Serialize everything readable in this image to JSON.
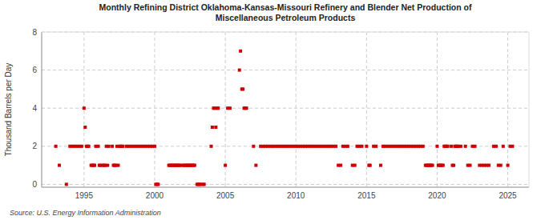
{
  "chart_data": {
    "type": "scatter",
    "title": "Monthly Refining District Oklahoma-Kansas-Missouri Refinery and Blender Net Production of\nMiscellaneous Petroleum Products",
    "ylabel": "Thousand Barrels per Day",
    "source": "Source: U.S. Energy Information Administration",
    "color": "#cc0000",
    "marker": "square",
    "grid": true,
    "xlim": [
      1992.0,
      2026.5
    ],
    "ylim": [
      -0.15,
      8.0
    ],
    "yticks": [
      0,
      2,
      4,
      6,
      8
    ],
    "xticks": [
      1995,
      2000,
      2005,
      2010,
      2015,
      2020,
      2025
    ],
    "x": [
      1993.0,
      1993.25,
      1993.75,
      1994.0,
      1994.17,
      1994.33,
      1994.5,
      1994.67,
      1994.83,
      1995.0,
      1995.08,
      1995.17,
      1995.25,
      1995.33,
      1995.5,
      1995.58,
      1995.67,
      1995.75,
      1995.83,
      1996.0,
      1996.08,
      1996.17,
      1996.33,
      1996.42,
      1996.5,
      1996.58,
      1996.67,
      1996.75,
      1997.0,
      1997.08,
      1997.17,
      1997.25,
      1997.33,
      1997.42,
      1997.5,
      1997.58,
      1997.67,
      1997.75,
      1998.0,
      1998.17,
      1998.33,
      1998.5,
      1998.67,
      1998.83,
      1999.0,
      1999.17,
      1999.33,
      1999.5,
      1999.67,
      1999.83,
      2000.0,
      2000.08,
      2000.17,
      2000.25,
      2001.0,
      2001.08,
      2001.17,
      2001.25,
      2001.33,
      2001.42,
      2001.5,
      2001.58,
      2001.67,
      2001.75,
      2001.83,
      2002.0,
      2002.08,
      2002.17,
      2002.25,
      2002.33,
      2002.42,
      2002.5,
      2002.58,
      2002.67,
      2002.75,
      2002.83,
      2003.0,
      2003.08,
      2003.17,
      2003.25,
      2003.42,
      2003.5,
      2004.0,
      2004.08,
      2004.17,
      2004.25,
      2004.33,
      2004.42,
      2004.5,
      2005.0,
      2005.17,
      2005.33,
      2006.0,
      2006.08,
      2006.17,
      2006.25,
      2006.33,
      2006.42,
      2006.5,
      2007.0,
      2007.17,
      2007.5,
      2007.67,
      2007.83,
      2008.0,
      2008.17,
      2008.33,
      2008.5,
      2008.67,
      2008.83,
      2009.0,
      2009.17,
      2009.33,
      2009.5,
      2009.67,
      2009.83,
      2010.0,
      2010.17,
      2010.33,
      2010.5,
      2010.67,
      2010.83,
      2011.0,
      2011.17,
      2011.33,
      2011.5,
      2011.67,
      2011.83,
      2012.0,
      2012.17,
      2012.33,
      2012.5,
      2012.67,
      2012.83,
      2013.0,
      2013.17,
      2013.33,
      2013.5,
      2013.67,
      2014.0,
      2014.17,
      2014.33,
      2014.5,
      2014.67,
      2015.0,
      2015.17,
      2015.25,
      2015.5,
      2015.67,
      2016.0,
      2016.17,
      2016.33,
      2016.5,
      2016.67,
      2016.83,
      2017.0,
      2017.17,
      2017.33,
      2017.5,
      2017.67,
      2017.83,
      2018.0,
      2018.17,
      2018.33,
      2018.5,
      2018.67,
      2018.83,
      2019.0,
      2019.17,
      2019.25,
      2019.33,
      2019.42,
      2019.5,
      2019.58,
      2019.67,
      2020.0,
      2020.08,
      2020.17,
      2020.25,
      2020.33,
      2020.42,
      2020.5,
      2020.58,
      2020.67,
      2020.75,
      2021.0,
      2021.08,
      2021.17,
      2021.25,
      2021.33,
      2021.42,
      2021.5,
      2021.67,
      2022.0,
      2022.17,
      2022.33,
      2022.5,
      2022.67,
      2023.0,
      2023.17,
      2023.33,
      2023.5,
      2023.67,
      2024.0,
      2024.17,
      2024.33,
      2024.5,
      2024.67,
      2025.0,
      2025.17,
      2025.33
    ],
    "values": [
      2,
      1,
      0,
      2,
      2,
      2,
      2,
      2,
      2,
      4,
      3,
      2,
      2,
      2,
      1,
      1,
      1,
      1,
      2,
      2,
      1,
      1,
      1,
      1,
      1,
      2,
      1,
      2,
      2,
      1,
      1,
      1,
      2,
      1,
      2,
      2,
      2,
      2,
      2,
      2,
      2,
      2,
      2,
      2,
      2,
      2,
      2,
      2,
      2,
      2,
      2,
      0,
      0,
      0,
      1,
      1,
      1,
      1,
      1,
      1,
      1,
      1,
      1,
      1,
      1,
      1,
      1,
      1,
      1,
      1,
      1,
      1,
      1,
      1,
      1,
      1,
      0,
      0,
      0,
      0,
      0,
      0,
      2,
      3,
      4,
      4,
      3,
      4,
      4,
      1,
      4,
      4,
      6,
      7,
      5,
      5,
      4,
      4,
      4,
      2,
      1,
      2,
      2,
      2,
      2,
      2,
      2,
      2,
      2,
      2,
      2,
      2,
      2,
      2,
      2,
      2,
      2,
      2,
      2,
      2,
      2,
      2,
      2,
      2,
      2,
      2,
      2,
      2,
      2,
      2,
      2,
      2,
      2,
      2,
      1,
      1,
      2,
      2,
      2,
      1,
      1,
      2,
      2,
      2,
      2,
      1,
      1,
      2,
      2,
      1,
      2,
      2,
      2,
      2,
      2,
      2,
      2,
      2,
      2,
      2,
      2,
      2,
      2,
      2,
      2,
      2,
      2,
      2,
      1,
      1,
      1,
      1,
      1,
      1,
      1,
      2,
      1,
      1,
      1,
      1,
      1,
      2,
      2,
      2,
      2,
      2,
      1,
      1,
      2,
      2,
      2,
      2,
      2,
      2,
      1,
      1,
      2,
      2,
      1,
      1,
      1,
      1,
      1,
      2,
      2,
      1,
      1,
      2,
      1,
      2,
      2
    ]
  }
}
